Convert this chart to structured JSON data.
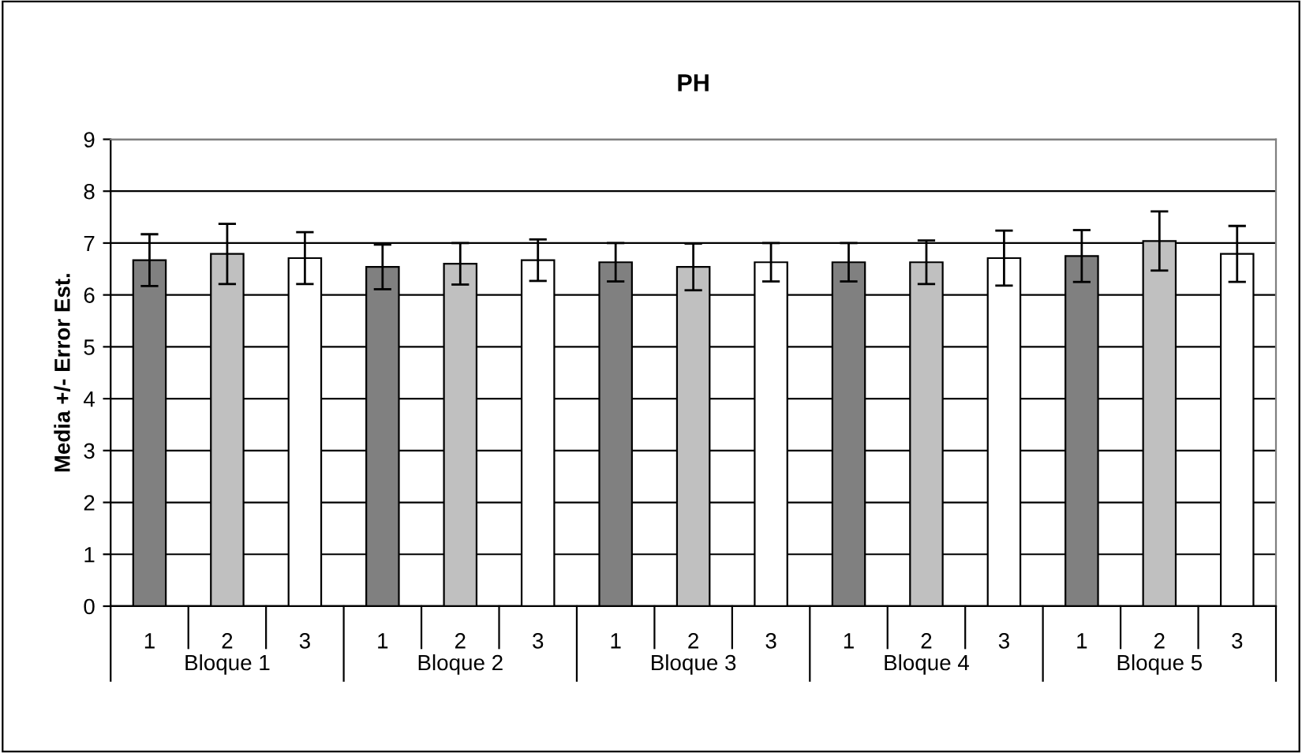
{
  "chart_data": {
    "type": "bar",
    "title": "PH",
    "ylabel": "Media +/- Error Est.",
    "categories": [
      "1",
      "2",
      "3",
      "1",
      "2",
      "3",
      "1",
      "2",
      "3",
      "1",
      "2",
      "3",
      "1",
      "2",
      "3"
    ],
    "values": [
      6.67,
      6.79,
      6.71,
      6.54,
      6.6,
      6.67,
      6.63,
      6.54,
      6.63,
      6.63,
      6.63,
      6.71,
      6.75,
      7.04,
      6.79
    ],
    "errors": [
      0.5,
      0.58,
      0.5,
      0.43,
      0.4,
      0.4,
      0.37,
      0.45,
      0.37,
      0.37,
      0.42,
      0.53,
      0.5,
      0.57,
      0.54
    ],
    "colors": [
      "#808080",
      "#c0c0c0",
      "#ffffff",
      "#808080",
      "#c0c0c0",
      "#ffffff",
      "#808080",
      "#c0c0c0",
      "#ffffff",
      "#808080",
      "#c0c0c0",
      "#ffffff",
      "#808080",
      "#c0c0c0",
      "#ffffff"
    ],
    "annotations": [
      "Bloque 1",
      "Bloque 2",
      "Bloque 3",
      "Bloque 4",
      "Bloque 5"
    ],
    "ylim": [
      0,
      9
    ],
    "yticks": [
      0,
      1,
      2,
      3,
      4,
      5,
      6,
      7,
      8,
      9
    ],
    "grid": "y",
    "legend": false
  }
}
